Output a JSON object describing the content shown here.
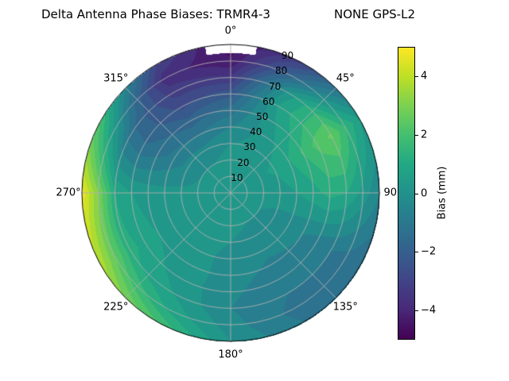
{
  "title": {
    "left": "Delta Antenna Phase Biases: TRMR4-3",
    "right": "NONE GPS-L2"
  },
  "chart_data": {
    "type": "heatmap",
    "projection": "polar",
    "title": "Delta Antenna Phase Biases: TRMR4-3        NONE GPS-L2",
    "azimuth_labels": [
      {
        "label": "0°",
        "angle_deg": 0
      },
      {
        "label": "45°",
        "angle_deg": 45
      },
      {
        "label": "90°",
        "angle_deg": 90
      },
      {
        "label": "135°",
        "angle_deg": 135
      },
      {
        "label": "180°",
        "angle_deg": 180
      },
      {
        "label": "225°",
        "angle_deg": 225
      },
      {
        "label": "270°",
        "angle_deg": 270
      },
      {
        "label": "315°",
        "angle_deg": 315
      }
    ],
    "radius_ticks": [
      10,
      20,
      30,
      40,
      50,
      60,
      70,
      80,
      90
    ],
    "radius_tick_angle_deg": 22.5,
    "radius_max": 90,
    "azimuth_grid_step_deg": 45,
    "radius_grid_step": 10,
    "grid_color": "#b0b0b0",
    "grid": {
      "azimuth_deg": [
        0,
        30,
        60,
        90,
        120,
        150,
        180,
        210,
        240,
        270,
        300,
        330
      ],
      "radius_deg": [
        0,
        10,
        20,
        30,
        40,
        50,
        60,
        70,
        80,
        90
      ],
      "values_mm": [
        [
          0.3,
          0.3,
          0.3,
          0.3,
          0.3,
          0.3,
          0.3,
          0.3,
          0.3,
          0.3,
          0.3,
          0.3
        ],
        [
          0.3,
          0.3,
          0.3,
          0.2,
          0.1,
          0.1,
          0.2,
          0.2,
          0.2,
          0.2,
          0.2,
          0.3
        ],
        [
          0.2,
          0.3,
          0.4,
          0.2,
          0.0,
          0.0,
          0.1,
          0.2,
          0.2,
          0.1,
          0.0,
          0.0
        ],
        [
          0.0,
          0.2,
          0.6,
          0.3,
          -0.2,
          -0.2,
          0.0,
          0.2,
          0.3,
          0.1,
          -0.3,
          -0.3
        ],
        [
          -0.5,
          0.2,
          1.0,
          0.5,
          -0.3,
          -0.4,
          -0.2,
          0.2,
          0.4,
          0.2,
          -0.8,
          -1.0
        ],
        [
          -1.2,
          0.4,
          1.6,
          0.8,
          -0.5,
          -0.6,
          -0.3,
          0.3,
          0.5,
          0.3,
          -1.2,
          -1.8
        ],
        [
          -2.2,
          0.7,
          2.2,
          1.2,
          -0.8,
          -0.8,
          -0.4,
          0.3,
          0.8,
          0.5,
          -1.5,
          -2.6
        ],
        [
          -3.4,
          0.2,
          2.6,
          1.0,
          -1.0,
          -1.0,
          -0.5,
          0.5,
          1.2,
          1.0,
          -1.2,
          -3.2
        ],
        [
          -4.4,
          -1.5,
          1.5,
          0.3,
          -1.2,
          -1.2,
          -0.3,
          1.0,
          2.5,
          3.0,
          0.2,
          -3.8
        ],
        [
          -4.8,
          -3.0,
          0.5,
          -0.5,
          -1.5,
          -1.0,
          0.0,
          2.0,
          3.8,
          4.8,
          1.8,
          -3.0
        ]
      ]
    },
    "mask_no_data": {
      "azimuth_center_deg": 0,
      "azimuth_halfwidth_deg": 10,
      "radius_min": 85
    },
    "levels_step_mm": 0.5,
    "colorbar": {
      "label": "Bias (mm)",
      "vmin": -5,
      "vmax": 5,
      "ticks": [
        4,
        2,
        0,
        -2,
        -4
      ],
      "tick_labels": [
        "4",
        "2",
        "0",
        "−2",
        "−4"
      ],
      "colormap": "viridis",
      "colors": [
        "#440154",
        "#482878",
        "#414487",
        "#35608d",
        "#2a788e",
        "#21918c",
        "#22a884",
        "#44bf70",
        "#7ad151",
        "#bddf26",
        "#fde725"
      ]
    }
  }
}
